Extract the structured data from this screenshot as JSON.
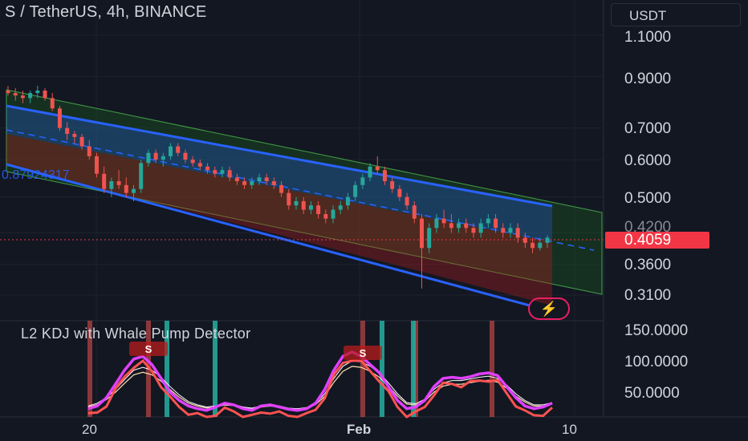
{
  "header": {
    "title": "S / TetherUS, 4h, BINANCE",
    "currency_button": "USDT"
  },
  "price_axis": {
    "ticks": [
      "1.1000",
      "0.9000",
      "0.7000",
      "0.6000",
      "0.5000",
      "0.4200",
      "0.3600",
      "0.3100"
    ],
    "current_price": "0.4059"
  },
  "indicator": {
    "title": "L2 KDJ with Whale Pump Detector",
    "ticks": [
      "150.0000",
      "100.0000",
      "50.0000"
    ],
    "signal_labels": [
      "S",
      "S"
    ]
  },
  "time_axis": {
    "ticks": [
      "20",
      "Feb",
      "10"
    ]
  },
  "fib_label": "0.87924317",
  "colors": {
    "background": "#131722",
    "up": "#26a69a",
    "down": "#ef5350",
    "channel_line": "#2962ff",
    "k_line": "#e040fb",
    "signal_line": "#ff5252",
    "current_price": "#f23645"
  },
  "chart_data": {
    "type": "candlestick",
    "symbol": "S / TetherUS",
    "interval": "4h",
    "exchange": "BINANCE",
    "y_scale": "log",
    "ylim": [
      0.3,
      1.15
    ],
    "x_ticks": [
      "20",
      "Feb",
      "10"
    ],
    "current_price": 0.4059,
    "candles": [
      [
        0.84,
        0.86,
        0.82,
        0.83
      ],
      [
        0.83,
        0.85,
        0.8,
        0.82
      ],
      [
        0.82,
        0.84,
        0.79,
        0.81
      ],
      [
        0.81,
        0.84,
        0.79,
        0.83
      ],
      [
        0.83,
        0.86,
        0.81,
        0.84
      ],
      [
        0.84,
        0.85,
        0.8,
        0.81
      ],
      [
        0.81,
        0.83,
        0.76,
        0.77
      ],
      [
        0.77,
        0.78,
        0.69,
        0.7
      ],
      [
        0.7,
        0.72,
        0.66,
        0.68
      ],
      [
        0.68,
        0.69,
        0.65,
        0.67
      ],
      [
        0.67,
        0.68,
        0.63,
        0.64
      ],
      [
        0.64,
        0.66,
        0.6,
        0.61
      ],
      [
        0.61,
        0.62,
        0.55,
        0.56
      ],
      [
        0.56,
        0.58,
        0.51,
        0.52
      ],
      [
        0.52,
        0.55,
        0.5,
        0.54
      ],
      [
        0.54,
        0.57,
        0.52,
        0.53
      ],
      [
        0.53,
        0.55,
        0.5,
        0.51
      ],
      [
        0.51,
        0.53,
        0.49,
        0.52
      ],
      [
        0.52,
        0.6,
        0.51,
        0.59
      ],
      [
        0.59,
        0.63,
        0.58,
        0.62
      ],
      [
        0.62,
        0.63,
        0.59,
        0.6
      ],
      [
        0.6,
        0.62,
        0.58,
        0.61
      ],
      [
        0.61,
        0.65,
        0.6,
        0.64
      ],
      [
        0.64,
        0.65,
        0.61,
        0.62
      ],
      [
        0.62,
        0.63,
        0.59,
        0.6
      ],
      [
        0.6,
        0.61,
        0.58,
        0.59
      ],
      [
        0.59,
        0.6,
        0.57,
        0.58
      ],
      [
        0.58,
        0.59,
        0.56,
        0.57
      ],
      [
        0.57,
        0.58,
        0.55,
        0.56
      ],
      [
        0.56,
        0.58,
        0.55,
        0.57
      ],
      [
        0.57,
        0.58,
        0.54,
        0.55
      ],
      [
        0.55,
        0.56,
        0.53,
        0.54
      ],
      [
        0.54,
        0.55,
        0.52,
        0.53
      ],
      [
        0.53,
        0.55,
        0.52,
        0.54
      ],
      [
        0.54,
        0.56,
        0.53,
        0.55
      ],
      [
        0.55,
        0.56,
        0.53,
        0.54
      ],
      [
        0.54,
        0.55,
        0.52,
        0.53
      ],
      [
        0.53,
        0.54,
        0.5,
        0.51
      ],
      [
        0.51,
        0.52,
        0.47,
        0.48
      ],
      [
        0.48,
        0.5,
        0.47,
        0.49
      ],
      [
        0.49,
        0.5,
        0.46,
        0.47
      ],
      [
        0.47,
        0.49,
        0.46,
        0.48
      ],
      [
        0.48,
        0.49,
        0.45,
        0.46
      ],
      [
        0.46,
        0.47,
        0.44,
        0.45
      ],
      [
        0.45,
        0.48,
        0.44,
        0.47
      ],
      [
        0.47,
        0.49,
        0.46,
        0.48
      ],
      [
        0.48,
        0.51,
        0.47,
        0.5
      ],
      [
        0.5,
        0.54,
        0.49,
        0.53
      ],
      [
        0.53,
        0.56,
        0.52,
        0.55
      ],
      [
        0.55,
        0.59,
        0.54,
        0.58
      ],
      [
        0.58,
        0.61,
        0.56,
        0.57
      ],
      [
        0.57,
        0.58,
        0.53,
        0.54
      ],
      [
        0.54,
        0.55,
        0.51,
        0.52
      ],
      [
        0.52,
        0.53,
        0.49,
        0.5
      ],
      [
        0.5,
        0.51,
        0.47,
        0.48
      ],
      [
        0.48,
        0.49,
        0.44,
        0.45
      ],
      [
        0.45,
        0.46,
        0.32,
        0.39
      ],
      [
        0.39,
        0.44,
        0.38,
        0.43
      ],
      [
        0.43,
        0.46,
        0.42,
        0.45
      ],
      [
        0.45,
        0.47,
        0.43,
        0.44
      ],
      [
        0.44,
        0.46,
        0.42,
        0.43
      ],
      [
        0.43,
        0.45,
        0.42,
        0.44
      ],
      [
        0.44,
        0.45,
        0.42,
        0.43
      ],
      [
        0.43,
        0.44,
        0.41,
        0.42
      ],
      [
        0.42,
        0.45,
        0.41,
        0.44
      ],
      [
        0.44,
        0.46,
        0.43,
        0.45
      ],
      [
        0.45,
        0.46,
        0.42,
        0.43
      ],
      [
        0.43,
        0.44,
        0.41,
        0.42
      ],
      [
        0.42,
        0.44,
        0.41,
        0.43
      ],
      [
        0.43,
        0.44,
        0.4,
        0.41
      ],
      [
        0.41,
        0.42,
        0.39,
        0.4
      ],
      [
        0.4,
        0.41,
        0.38,
        0.39
      ],
      [
        0.39,
        0.41,
        0.385,
        0.4
      ],
      [
        0.4,
        0.415,
        0.39,
        0.41
      ]
    ],
    "indicator": {
      "name": "L2 KDJ with Whale Pump Detector",
      "y_ticks": [
        150,
        100,
        50
      ],
      "ylim": [
        0,
        160
      ],
      "k": [
        15,
        20,
        35,
        60,
        85,
        105,
        110,
        95,
        70,
        45,
        30,
        20,
        15,
        12,
        18,
        25,
        22,
        15,
        12,
        20,
        22,
        18,
        14,
        12,
        15,
        25,
        50,
        85,
        110,
        118,
        110,
        95,
        80,
        55,
        30,
        15,
        18,
        30,
        55,
        70,
        72,
        70,
        73,
        78,
        80,
        75,
        55,
        35,
        20,
        15,
        18,
        25
      ],
      "d": [
        20,
        25,
        35,
        50,
        68,
        85,
        90,
        85,
        72,
        55,
        40,
        28,
        22,
        18,
        20,
        24,
        23,
        18,
        16,
        20,
        22,
        20,
        16,
        15,
        17,
        25,
        42,
        70,
        92,
        102,
        100,
        92,
        80,
        62,
        42,
        26,
        24,
        32,
        50,
        62,
        66,
        66,
        69,
        72,
        74,
        70,
        58,
        42,
        30,
        22,
        22,
        26
      ],
      "signal_bars": [
        "green",
        "red",
        "red",
        "green",
        "red",
        "red",
        "green",
        "green",
        "red"
      ]
    }
  }
}
